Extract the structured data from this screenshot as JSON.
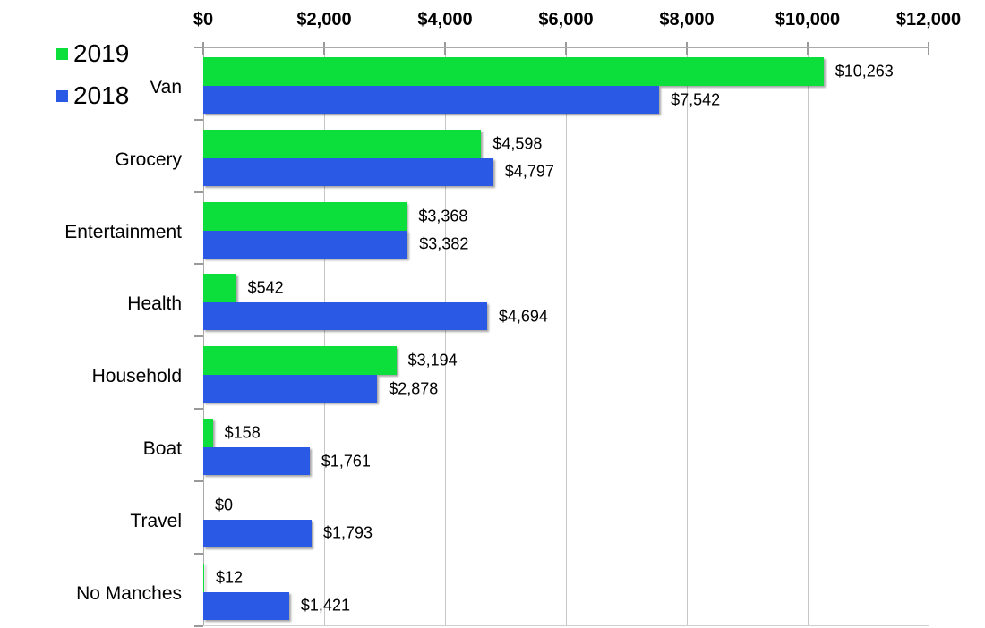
{
  "chart_data": {
    "type": "bar",
    "orientation": "horizontal",
    "title": "",
    "categories": [
      "Van",
      "Grocery",
      "Entertainment",
      "Health",
      "Household",
      "Boat",
      "Travel",
      "No Manches"
    ],
    "series": [
      {
        "name": "2019",
        "color": "#0cdf3b",
        "values": [
          10263,
          4598,
          3368,
          542,
          3194,
          158,
          0,
          12
        ],
        "labels": [
          "$10,263",
          "$4,598",
          "$3,368",
          "$542",
          "$3,194",
          "$158",
          "$0",
          "$12"
        ]
      },
      {
        "name": "2018",
        "color": "#2a59e6",
        "values": [
          7542,
          4797,
          3382,
          4694,
          2878,
          1761,
          1793,
          1421
        ],
        "labels": [
          "$7,542",
          "$4,797",
          "$3,382",
          "$4,694",
          "$2,878",
          "$1,761",
          "$1,793",
          "$1,421"
        ]
      }
    ],
    "x_axis": {
      "position": "top",
      "min": 0,
      "max": 12000,
      "tick_interval": 2000,
      "tick_labels": [
        "$0",
        "$2,000",
        "$4,000",
        "$6,000",
        "$8,000",
        "$10,000",
        "$12,000"
      ]
    },
    "legend": {
      "position": "top-left",
      "entries": [
        {
          "label": "2019",
          "color": "#0cdf3b"
        },
        {
          "label": "2018",
          "color": "#2a59e6"
        }
      ]
    },
    "grid": true,
    "style_colors": {
      "background": "#ffffff",
      "gridline": "#c6c6c6",
      "axis_frame": "#ababab",
      "tick": "#9a9a9a",
      "text": "#000000"
    }
  }
}
